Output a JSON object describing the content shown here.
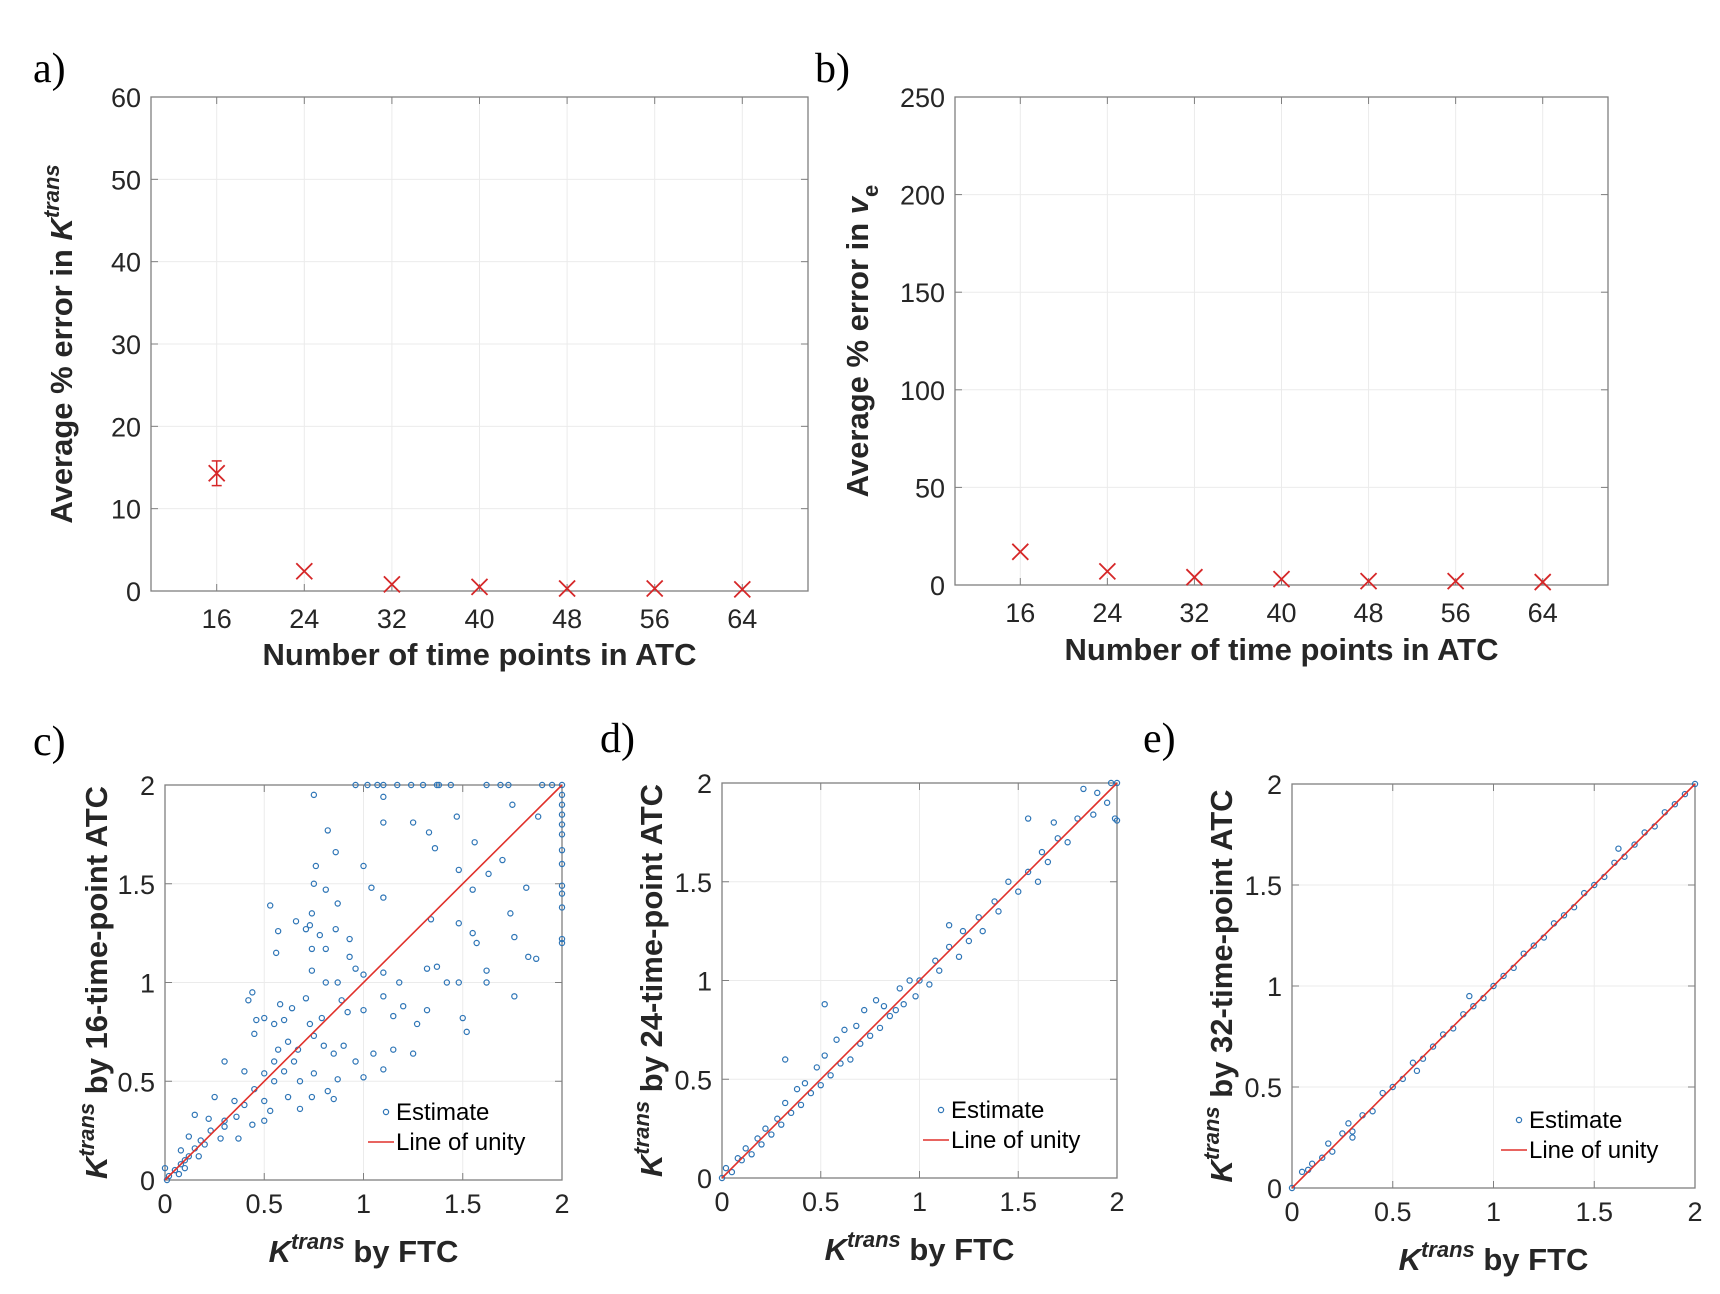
{
  "colors": {
    "error_marker": "#d62728",
    "estimate": "#2e75b6",
    "unity_line": "#e0312b",
    "grid": "#ebebeb",
    "axis": "#7f7f7f"
  },
  "chart_data": [
    {
      "panel_label": "a)",
      "type": "scatter",
      "marker": "x",
      "xlabel": "Number of time points in ATC",
      "ylabel": {
        "prefix": "Average % error in ",
        "symbol": "K",
        "sup": "trans",
        "sub": ""
      },
      "xlim": [
        10,
        70
      ],
      "ylim": [
        0,
        60
      ],
      "xticks": [
        16,
        24,
        32,
        40,
        48,
        56,
        64
      ],
      "yticks": [
        0,
        10,
        20,
        30,
        40,
        50,
        60
      ],
      "grid": true,
      "x": [
        16,
        24,
        32,
        40,
        48,
        56,
        64
      ],
      "y": [
        14.3,
        2.4,
        0.8,
        0.5,
        0.3,
        0.3,
        0.2
      ],
      "error_low": [
        12.8,
        null,
        null,
        null,
        null,
        null,
        null
      ],
      "error_high": [
        15.8,
        null,
        null,
        null,
        null,
        null,
        null
      ]
    },
    {
      "panel_label": "b)",
      "type": "scatter",
      "marker": "x",
      "xlabel": "Number of time points in ATC",
      "ylabel": {
        "prefix": "Average % error in ",
        "symbol": "v",
        "sup": "",
        "sub": "e"
      },
      "xlim": [
        10,
        70
      ],
      "ylim": [
        0,
        250
      ],
      "xticks": [
        16,
        24,
        32,
        40,
        48,
        56,
        64
      ],
      "yticks": [
        0,
        50,
        100,
        150,
        200,
        250
      ],
      "grid": true,
      "x": [
        16,
        24,
        32,
        40,
        48,
        56,
        64
      ],
      "y": [
        17,
        7,
        4,
        3,
        2,
        2,
        1.5
      ]
    },
    {
      "panel_label": "c)",
      "type": "scatter",
      "xlabel": {
        "symbol": "K",
        "sup": "trans",
        "suffix": " by FTC"
      },
      "ylabel": {
        "symbol": "K",
        "sup": "trans",
        "suffix": " by 16-time-point ATC"
      },
      "xlim": [
        0,
        2
      ],
      "ylim": [
        0,
        2
      ],
      "xticks": [
        0,
        0.5,
        1,
        1.5,
        2
      ],
      "yticks": [
        0,
        0.5,
        1,
        1.5,
        2
      ],
      "grid": true,
      "legend": {
        "position": "bottom-right",
        "entries": [
          "Estimate",
          "Line of unity"
        ]
      },
      "points": [
        [
          0.96,
          2
        ],
        [
          1.02,
          2
        ],
        [
          1.07,
          2
        ],
        [
          1.1,
          2
        ],
        [
          1.17,
          2
        ],
        [
          1.24,
          2
        ],
        [
          1.3,
          2
        ],
        [
          1.37,
          2
        ],
        [
          1.38,
          2
        ],
        [
          1.44,
          2
        ],
        [
          1.62,
          2
        ],
        [
          1.69,
          2
        ],
        [
          1.73,
          2
        ],
        [
          1.9,
          2
        ],
        [
          1.95,
          2
        ],
        [
          2,
          2
        ],
        [
          2,
          1.95
        ],
        [
          2,
          1.9
        ],
        [
          2,
          1.85
        ],
        [
          2,
          1.8
        ],
        [
          2,
          1.75
        ],
        [
          2,
          1.67
        ],
        [
          2,
          1.6
        ],
        [
          2,
          1.49
        ],
        [
          2,
          1.45
        ],
        [
          2,
          1.38
        ],
        [
          2,
          1.22
        ],
        [
          2,
          1.2
        ],
        [
          0.75,
          1.95
        ],
        [
          1.1,
          1.94
        ],
        [
          1.1,
          1.81
        ],
        [
          0.82,
          1.77
        ],
        [
          1.25,
          1.81
        ],
        [
          1.47,
          1.84
        ],
        [
          1.33,
          1.76
        ],
        [
          1.88,
          1.84
        ],
        [
          1.75,
          1.9
        ],
        [
          0.86,
          1.66
        ],
        [
          1.36,
          1.68
        ],
        [
          1.56,
          1.71
        ],
        [
          0.76,
          1.59
        ],
        [
          1.0,
          1.59
        ],
        [
          0.75,
          1.5
        ],
        [
          0.81,
          1.47
        ],
        [
          1.04,
          1.48
        ],
        [
          1.1,
          1.43
        ],
        [
          0.53,
          1.39
        ],
        [
          0.87,
          1.4
        ],
        [
          1.48,
          1.57
        ],
        [
          1.63,
          1.55
        ],
        [
          1.7,
          1.62
        ],
        [
          1.55,
          1.47
        ],
        [
          1.82,
          1.48
        ],
        [
          0.66,
          1.31
        ],
        [
          0.74,
          1.35
        ],
        [
          0.73,
          1.29
        ],
        [
          0.57,
          1.26
        ],
        [
          0.71,
          1.27
        ],
        [
          0.86,
          1.27
        ],
        [
          0.78,
          1.24
        ],
        [
          0.93,
          1.22
        ],
        [
          0.56,
          1.15
        ],
        [
          0.74,
          1.17
        ],
        [
          0.81,
          1.17
        ],
        [
          0.93,
          1.13
        ],
        [
          1.34,
          1.32
        ],
        [
          1.48,
          1.3
        ],
        [
          1.55,
          1.25
        ],
        [
          1.57,
          1.2
        ],
        [
          1.74,
          1.35
        ],
        [
          1.76,
          1.23
        ],
        [
          1.83,
          1.13
        ],
        [
          1.87,
          1.12
        ],
        [
          0.74,
          1.06
        ],
        [
          0.81,
          1.0
        ],
        [
          0.87,
          1.0
        ],
        [
          0.96,
          1.07
        ],
        [
          1.0,
          1.04
        ],
        [
          1.1,
          1.05
        ],
        [
          1.18,
          1.0
        ],
        [
          1.32,
          1.07
        ],
        [
          1.37,
          1.08
        ],
        [
          1.42,
          1.0
        ],
        [
          1.48,
          1.0
        ],
        [
          1.62,
          1.06
        ],
        [
          1.62,
          1.0
        ],
        [
          1.76,
          0.93
        ],
        [
          0.42,
          0.91
        ],
        [
          0.44,
          0.95
        ],
        [
          0.58,
          0.89
        ],
        [
          0.64,
          0.87
        ],
        [
          0.71,
          0.92
        ],
        [
          0.89,
          0.91
        ],
        [
          1.1,
          0.93
        ],
        [
          1.2,
          0.88
        ],
        [
          1.32,
          0.86
        ],
        [
          1.5,
          0.82
        ],
        [
          1.52,
          0.75
        ],
        [
          0.46,
          0.81
        ],
        [
          0.5,
          0.82
        ],
        [
          0.55,
          0.79
        ],
        [
          0.6,
          0.81
        ],
        [
          0.73,
          0.79
        ],
        [
          0.79,
          0.82
        ],
        [
          0.92,
          0.85
        ],
        [
          1.0,
          0.86
        ],
        [
          1.15,
          0.83
        ],
        [
          1.27,
          0.79
        ],
        [
          0.45,
          0.74
        ],
        [
          0.57,
          0.66
        ],
        [
          0.62,
          0.7
        ],
        [
          0.67,
          0.66
        ],
        [
          0.75,
          0.73
        ],
        [
          0.8,
          0.68
        ],
        [
          0.85,
          0.64
        ],
        [
          0.9,
          0.68
        ],
        [
          0.96,
          0.6
        ],
        [
          1.05,
          0.64
        ],
        [
          1.15,
          0.66
        ],
        [
          1.25,
          0.64
        ],
        [
          0.3,
          0.6
        ],
        [
          0.4,
          0.55
        ],
        [
          0.5,
          0.54
        ],
        [
          0.55,
          0.5
        ],
        [
          0.6,
          0.55
        ],
        [
          0.68,
          0.5
        ],
        [
          0.75,
          0.54
        ],
        [
          0.82,
          0.45
        ],
        [
          0.87,
          0.51
        ],
        [
          1.0,
          0.52
        ],
        [
          1.1,
          0.56
        ],
        [
          0.25,
          0.42
        ],
        [
          0.35,
          0.4
        ],
        [
          0.4,
          0.38
        ],
        [
          0.45,
          0.46
        ],
        [
          0.5,
          0.4
        ],
        [
          0.53,
          0.35
        ],
        [
          0.62,
          0.42
        ],
        [
          0.68,
          0.36
        ],
        [
          0.74,
          0.42
        ],
        [
          0.85,
          0.41
        ],
        [
          0.15,
          0.33
        ],
        [
          0.22,
          0.31
        ],
        [
          0.3,
          0.3
        ],
        [
          0.36,
          0.32
        ],
        [
          0.44,
          0.28
        ],
        [
          0.5,
          0.3
        ],
        [
          0.12,
          0.22
        ],
        [
          0.18,
          0.2
        ],
        [
          0.23,
          0.25
        ],
        [
          0.28,
          0.21
        ],
        [
          0.37,
          0.21
        ],
        [
          0.08,
          0.15
        ],
        [
          0.1,
          0.1
        ],
        [
          0.12,
          0.12
        ],
        [
          0.15,
          0.16
        ],
        [
          0.17,
          0.12
        ],
        [
          0.2,
          0.18
        ],
        [
          0.05,
          0.05
        ],
        [
          0.07,
          0.03
        ],
        [
          0.08,
          0.08
        ],
        [
          0.1,
          0.06
        ],
        [
          0.02,
          0.02
        ],
        [
          0.0,
          0.06
        ],
        [
          0.01,
          0.0
        ],
        [
          0.3,
          0.27
        ],
        [
          0.55,
          0.6
        ],
        [
          0.65,
          0.6
        ]
      ]
    },
    {
      "panel_label": "d)",
      "type": "scatter",
      "xlabel": {
        "symbol": "K",
        "sup": "trans",
        "suffix": " by FTC"
      },
      "ylabel": {
        "symbol": "K",
        "sup": "trans",
        "suffix": " by 24-time-point ATC"
      },
      "xlim": [
        0,
        2
      ],
      "ylim": [
        0,
        2
      ],
      "xticks": [
        0,
        0.5,
        1,
        1.5,
        2
      ],
      "yticks": [
        0,
        0.5,
        1,
        1.5,
        2
      ],
      "grid": true,
      "legend": {
        "position": "bottom-right",
        "entries": [
          "Estimate",
          "Line of unity"
        ]
      },
      "points": [
        [
          0,
          0
        ],
        [
          0.02,
          0.05
        ],
        [
          0.05,
          0.03
        ],
        [
          0.08,
          0.1
        ],
        [
          0.1,
          0.09
        ],
        [
          0.12,
          0.15
        ],
        [
          0.15,
          0.12
        ],
        [
          0.18,
          0.2
        ],
        [
          0.2,
          0.17
        ],
        [
          0.22,
          0.25
        ],
        [
          0.25,
          0.22
        ],
        [
          0.28,
          0.3
        ],
        [
          0.3,
          0.27
        ],
        [
          0.32,
          0.38
        ],
        [
          0.35,
          0.33
        ],
        [
          0.38,
          0.45
        ],
        [
          0.4,
          0.37
        ],
        [
          0.42,
          0.48
        ],
        [
          0.45,
          0.43
        ],
        [
          0.48,
          0.56
        ],
        [
          0.5,
          0.47
        ],
        [
          0.52,
          0.62
        ],
        [
          0.55,
          0.52
        ],
        [
          0.58,
          0.7
        ],
        [
          0.6,
          0.58
        ],
        [
          0.62,
          0.75
        ],
        [
          0.65,
          0.6
        ],
        [
          0.68,
          0.77
        ],
        [
          0.7,
          0.68
        ],
        [
          0.72,
          0.85
        ],
        [
          0.75,
          0.72
        ],
        [
          0.78,
          0.9
        ],
        [
          0.8,
          0.76
        ],
        [
          0.82,
          0.87
        ],
        [
          0.85,
          0.82
        ],
        [
          0.88,
          0.85
        ],
        [
          0.9,
          0.96
        ],
        [
          0.92,
          0.88
        ],
        [
          0.95,
          1.0
        ],
        [
          0.98,
          0.92
        ],
        [
          1.0,
          1.0
        ],
        [
          1.05,
          0.98
        ],
        [
          1.08,
          1.1
        ],
        [
          1.1,
          1.05
        ],
        [
          1.15,
          1.17
        ],
        [
          1.2,
          1.12
        ],
        [
          1.22,
          1.25
        ],
        [
          1.25,
          1.2
        ],
        [
          1.3,
          1.32
        ],
        [
          1.32,
          1.25
        ],
        [
          1.38,
          1.4
        ],
        [
          1.4,
          1.35
        ],
        [
          1.45,
          1.5
        ],
        [
          1.5,
          1.45
        ],
        [
          1.55,
          1.55
        ],
        [
          1.6,
          1.5
        ],
        [
          1.62,
          1.65
        ],
        [
          1.65,
          1.6
        ],
        [
          1.7,
          1.72
        ],
        [
          1.75,
          1.7
        ],
        [
          1.8,
          1.82
        ],
        [
          1.83,
          1.97
        ],
        [
          1.88,
          1.84
        ],
        [
          1.9,
          1.95
        ],
        [
          1.95,
          1.9
        ],
        [
          1.97,
          2.0
        ],
        [
          2.0,
          2.0
        ],
        [
          1.99,
          1.82
        ],
        [
          2.0,
          1.81
        ],
        [
          0.52,
          0.88
        ],
        [
          0.32,
          0.6
        ],
        [
          1.55,
          1.82
        ],
        [
          1.68,
          1.8
        ],
        [
          1.15,
          1.28
        ]
      ]
    },
    {
      "panel_label": "e)",
      "type": "scatter",
      "xlabel": {
        "symbol": "K",
        "sup": "trans",
        "suffix": " by FTC"
      },
      "ylabel": {
        "symbol": "K",
        "sup": "trans",
        "suffix": " by 32-time-point ATC"
      },
      "xlim": [
        0,
        2
      ],
      "ylim": [
        0,
        2
      ],
      "xticks": [
        0,
        0.5,
        1,
        1.5,
        2
      ],
      "yticks": [
        0,
        0.5,
        1,
        1.5,
        2
      ],
      "grid": true,
      "legend": {
        "position": "bottom-right",
        "entries": [
          "Estimate",
          "Line of unity"
        ]
      },
      "points": [
        [
          0,
          0
        ],
        [
          0.05,
          0.08
        ],
        [
          0.08,
          0.09
        ],
        [
          0.1,
          0.12
        ],
        [
          0.15,
          0.15
        ],
        [
          0.2,
          0.18
        ],
        [
          0.25,
          0.27
        ],
        [
          0.3,
          0.28
        ],
        [
          0.35,
          0.36
        ],
        [
          0.4,
          0.38
        ],
        [
          0.45,
          0.47
        ],
        [
          0.5,
          0.5
        ],
        [
          0.55,
          0.54
        ],
        [
          0.6,
          0.62
        ],
        [
          0.65,
          0.64
        ],
        [
          0.7,
          0.7
        ],
        [
          0.75,
          0.76
        ],
        [
          0.8,
          0.79
        ],
        [
          0.85,
          0.86
        ],
        [
          0.9,
          0.9
        ],
        [
          0.95,
          0.94
        ],
        [
          1.0,
          1.0
        ],
        [
          1.05,
          1.05
        ],
        [
          1.1,
          1.09
        ],
        [
          1.15,
          1.16
        ],
        [
          1.2,
          1.2
        ],
        [
          1.25,
          1.24
        ],
        [
          1.3,
          1.31
        ],
        [
          1.35,
          1.35
        ],
        [
          1.4,
          1.39
        ],
        [
          1.45,
          1.46
        ],
        [
          1.5,
          1.5
        ],
        [
          1.55,
          1.54
        ],
        [
          1.6,
          1.61
        ],
        [
          1.65,
          1.64
        ],
        [
          1.7,
          1.7
        ],
        [
          1.75,
          1.76
        ],
        [
          1.8,
          1.79
        ],
        [
          1.85,
          1.86
        ],
        [
          1.9,
          1.9
        ],
        [
          1.95,
          1.95
        ],
        [
          2,
          2
        ],
        [
          0.28,
          0.32
        ],
        [
          0.62,
          0.58
        ],
        [
          0.88,
          0.95
        ],
        [
          1.62,
          1.68
        ],
        [
          0.3,
          0.25
        ],
        [
          0.18,
          0.22
        ]
      ]
    }
  ]
}
